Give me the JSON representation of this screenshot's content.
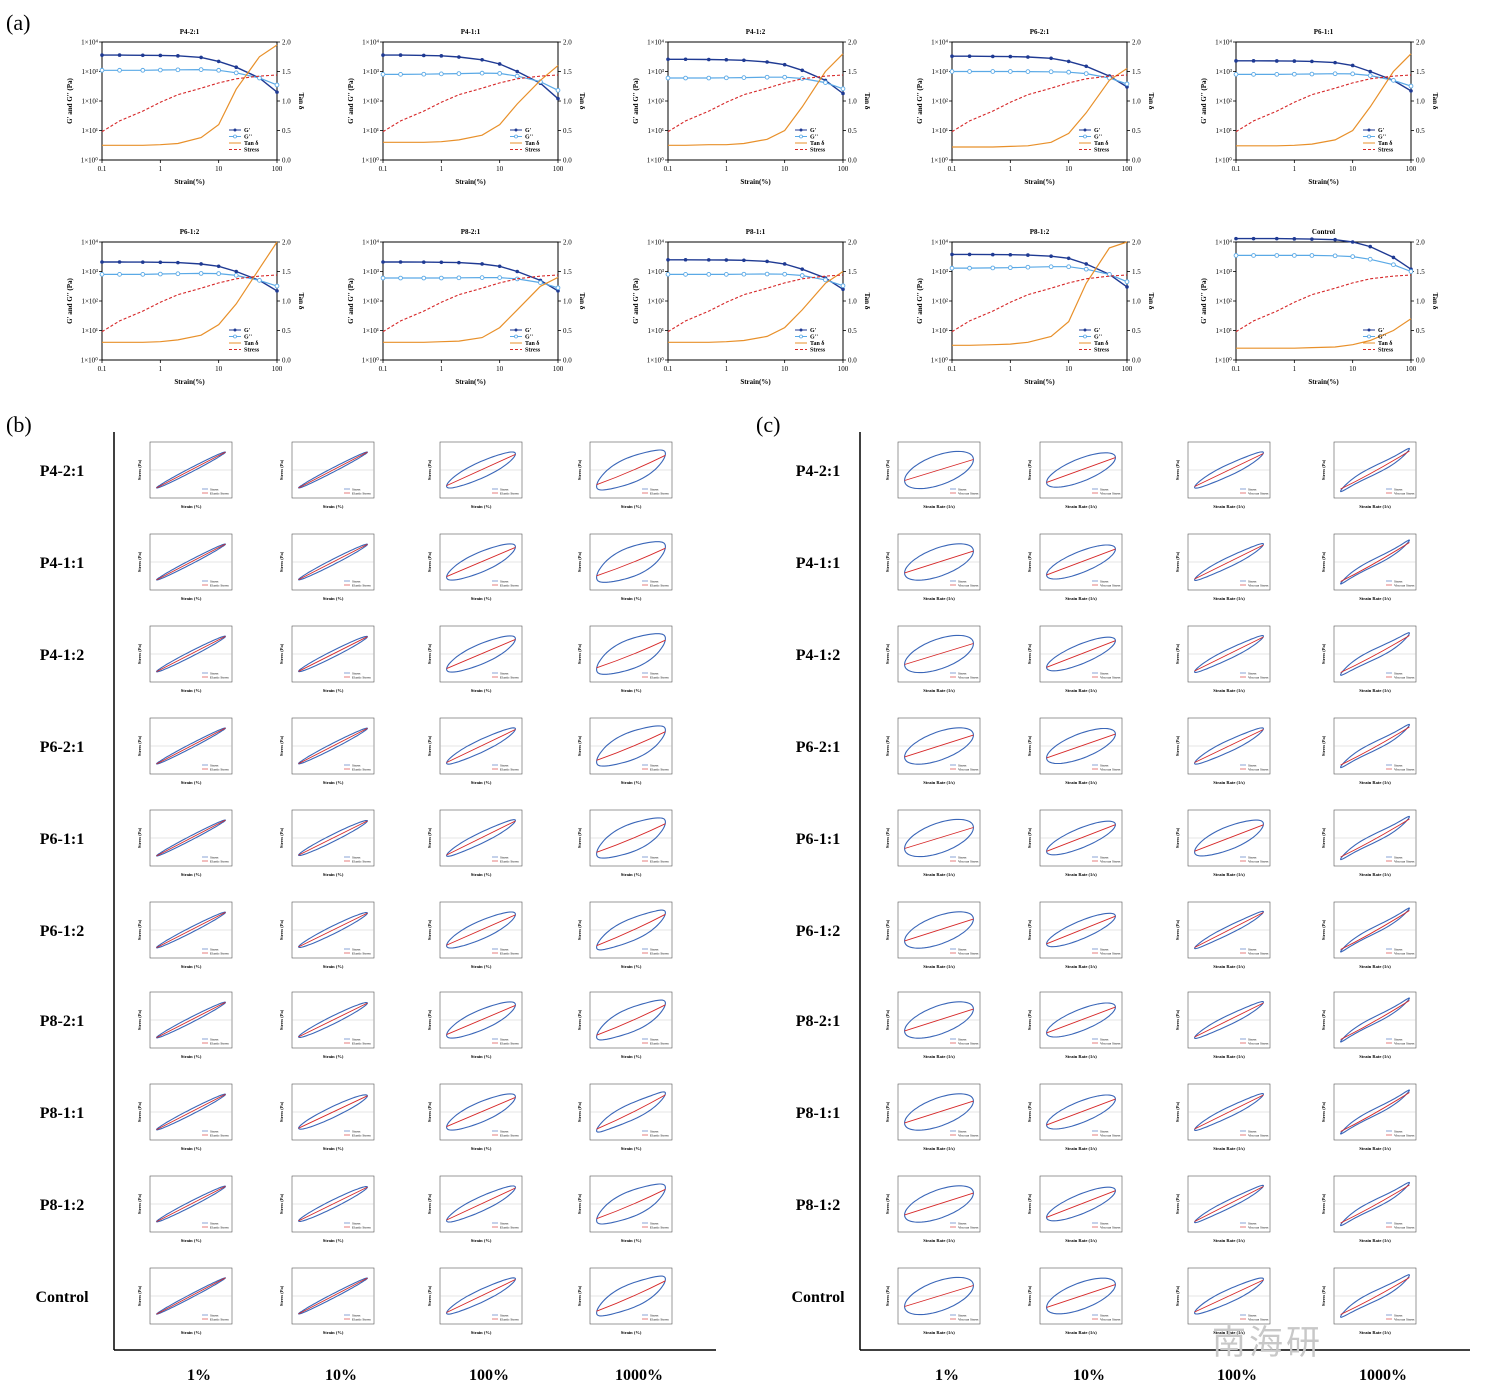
{
  "panel_labels": {
    "a": "(a)",
    "b": "(b)",
    "c": "(c)"
  },
  "watermark": "南海研",
  "colors": {
    "g_prime": "#1f3a93",
    "g_double_prime": "#5aa9e6",
    "tan_delta": "#e8902a",
    "stress": "#d62728",
    "lissajous_total": "#3a66b8",
    "lissajous_elastic": "#d62728"
  },
  "amplitude_sweeps": {
    "left_axis_label": "G' and G'' (Pa)",
    "right_axis_label": "Tan δ",
    "x_axis_label": "Strain(%)",
    "x_ticks": [
      "0.1",
      "1",
      "10",
      "100"
    ],
    "left_ticks": [
      "1×10⁰",
      "1×10¹",
      "1×10²",
      "1×10³",
      "1×10⁴"
    ],
    "right_ticks": [
      "0.0",
      "0.5",
      "1.0",
      "1.5",
      "2.0"
    ],
    "legend": [
      "G'",
      "G''",
      "Tan δ",
      "Stress"
    ],
    "samples": [
      "P4-2:1",
      "P4-1:1",
      "P4-1:2",
      "P6-2:1",
      "P6-1:1",
      "P6-1:2",
      "P8-2:1",
      "P8-1:1",
      "P8-1:2",
      "Control"
    ]
  },
  "lissajous": {
    "row_labels": [
      "P4-2:1",
      "P4-1:1",
      "P4-1:2",
      "P6-2:1",
      "P6-1:1",
      "P6-1:2",
      "P8-2:1",
      "P8-1:1",
      "P8-1:2",
      "Control"
    ],
    "column_labels": [
      "1%",
      "10%",
      "100%",
      "1000%"
    ],
    "b_xlabel": "Strain (%)",
    "b_ylabel": "Stress (Pa)",
    "c_xlabel": "Strain Rate (1/s)",
    "c_ylabel": "Stress (Pa)",
    "b_legend": [
      "Stress",
      "Elastic Stress"
    ],
    "c_legend": [
      "Stress",
      "Viscous Stress"
    ]
  },
  "chart_data": [
    {
      "type": "line",
      "title": "",
      "panel": "(a) amplitude sweeps",
      "xlabel": "Strain(%)",
      "ylabel": "G' and G'' (Pa)",
      "y2label": "Tan δ",
      "xscale": "log",
      "yscale": "log",
      "xlim": [
        0.1,
        100
      ],
      "ylim": [
        1,
        10000
      ],
      "y2lim": [
        0,
        2
      ],
      "x": [
        0.1,
        0.2,
        0.5,
        1,
        2,
        5,
        10,
        20,
        50,
        100
      ],
      "samples": [
        {
          "name": "P4-2:1",
          "Gp": [
            3600,
            3600,
            3550,
            3500,
            3400,
            3000,
            2200,
            1400,
            600,
            200
          ],
          "Gpp": [
            1100,
            1100,
            1100,
            1120,
            1140,
            1160,
            1100,
            900,
            600,
            350
          ],
          "tand": [
            0.25,
            0.25,
            0.25,
            0.26,
            0.28,
            0.38,
            0.6,
            1.2,
            1.75,
            1.95
          ]
        },
        {
          "name": "P4-1:1",
          "Gp": [
            3600,
            3600,
            3500,
            3400,
            3100,
            2500,
            1800,
            1000,
            400,
            120
          ],
          "Gpp": [
            800,
            800,
            810,
            830,
            850,
            880,
            860,
            700,
            450,
            230
          ],
          "tand": [
            0.3,
            0.3,
            0.3,
            0.31,
            0.34,
            0.42,
            0.6,
            0.95,
            1.35,
            1.6
          ]
        },
        {
          "name": "P4-1:2",
          "Gp": [
            2600,
            2600,
            2550,
            2500,
            2400,
            2100,
            1700,
            1100,
            500,
            180
          ],
          "Gpp": [
            600,
            600,
            600,
            610,
            620,
            640,
            640,
            580,
            420,
            260
          ],
          "tand": [
            0.25,
            0.25,
            0.26,
            0.26,
            0.28,
            0.35,
            0.5,
            0.9,
            1.5,
            1.8
          ]
        },
        {
          "name": "P6-2:1",
          "Gp": [
            3300,
            3300,
            3250,
            3200,
            3100,
            2800,
            2200,
            1500,
            700,
            300
          ],
          "Gpp": [
            1000,
            1000,
            1000,
            1000,
            990,
            980,
            950,
            850,
            600,
            380
          ],
          "tand": [
            0.22,
            0.22,
            0.22,
            0.23,
            0.24,
            0.3,
            0.45,
            0.8,
            1.35,
            1.55
          ]
        },
        {
          "name": "P6-1:1",
          "Gp": [
            2300,
            2300,
            2280,
            2250,
            2200,
            2000,
            1600,
            1000,
            500,
            220
          ],
          "Gpp": [
            800,
            800,
            800,
            810,
            820,
            840,
            830,
            730,
            500,
            320
          ],
          "tand": [
            0.24,
            0.24,
            0.24,
            0.25,
            0.27,
            0.34,
            0.5,
            0.9,
            1.5,
            1.8
          ]
        },
        {
          "name": "P6-1:2",
          "Gp": [
            2100,
            2100,
            2080,
            2050,
            2000,
            1800,
            1500,
            1000,
            500,
            220
          ],
          "Gpp": [
            800,
            800,
            800,
            820,
            840,
            860,
            850,
            740,
            500,
            320
          ],
          "tand": [
            0.3,
            0.3,
            0.3,
            0.31,
            0.34,
            0.42,
            0.6,
            0.95,
            1.55,
            2.0
          ]
        },
        {
          "name": "P8-2:1",
          "Gp": [
            2100,
            2100,
            2080,
            2050,
            2000,
            1800,
            1500,
            1000,
            500,
            220
          ],
          "Gpp": [
            600,
            600,
            600,
            600,
            610,
            620,
            620,
            560,
            420,
            280
          ],
          "tand": [
            0.3,
            0.3,
            0.3,
            0.31,
            0.32,
            0.38,
            0.55,
            0.85,
            1.25,
            1.4
          ]
        },
        {
          "name": "P8-1:1",
          "Gp": [
            2500,
            2500,
            2480,
            2450,
            2400,
            2200,
            1800,
            1200,
            600,
            250
          ],
          "Gpp": [
            800,
            800,
            800,
            800,
            810,
            820,
            810,
            730,
            520,
            330
          ],
          "tand": [
            0.3,
            0.3,
            0.3,
            0.31,
            0.33,
            0.4,
            0.55,
            0.85,
            1.3,
            1.5
          ]
        },
        {
          "name": "P8-1:2",
          "Gp": [
            3800,
            3800,
            3750,
            3700,
            3600,
            3300,
            2800,
            1800,
            800,
            300
          ],
          "Gpp": [
            1300,
            1300,
            1320,
            1350,
            1400,
            1450,
            1450,
            1200,
            800,
            450
          ],
          "tand": [
            0.25,
            0.25,
            0.26,
            0.27,
            0.3,
            0.4,
            0.65,
            1.3,
            1.9,
            2.0
          ]
        },
        {
          "name": "Control",
          "Gp": [
            13000,
            13000,
            13000,
            12800,
            12500,
            12000,
            10000,
            7000,
            3000,
            1200
          ],
          "Gpp": [
            3500,
            3500,
            3500,
            3500,
            3500,
            3400,
            3200,
            2600,
            1700,
            1000
          ],
          "tand": [
            0.2,
            0.2,
            0.2,
            0.2,
            0.21,
            0.22,
            0.26,
            0.33,
            0.5,
            0.7
          ]
        }
      ]
    },
    {
      "type": "line",
      "title": "",
      "panel": "(b) elastic Lissajous-Bowditch curves (stress vs strain)",
      "xlabel": "Strain (%)",
      "ylabel": "Stress (Pa)",
      "rows": [
        "P4-2:1",
        "P4-1:1",
        "P4-1:2",
        "P6-2:1",
        "P6-1:1",
        "P6-1:2",
        "P8-2:1",
        "P8-1:1",
        "P8-1:2",
        "Control"
      ],
      "columns": [
        "1%",
        "10%",
        "100%",
        "1000%"
      ],
      "loop_openness": [
        [
          0.12,
          0.12,
          0.45,
          0.7
        ],
        [
          0.12,
          0.15,
          0.55,
          0.8
        ],
        [
          0.15,
          0.18,
          0.55,
          0.8
        ],
        [
          0.12,
          0.15,
          0.35,
          0.75
        ],
        [
          0.12,
          0.2,
          0.3,
          0.75
        ],
        [
          0.15,
          0.22,
          0.5,
          0.6
        ],
        [
          0.15,
          0.22,
          0.55,
          0.65
        ],
        [
          0.15,
          0.3,
          0.55,
          0.45
        ],
        [
          0.15,
          0.22,
          0.4,
          0.7
        ],
        [
          0.1,
          0.12,
          0.35,
          0.65
        ]
      ]
    },
    {
      "type": "line",
      "title": "",
      "panel": "(c) viscous Lissajous-Bowditch curves (stress vs strain rate)",
      "xlabel": "Strain Rate (1/s)",
      "ylabel": "Stress (Pa)",
      "rows": [
        "P4-2:1",
        "P4-1:1",
        "P4-1:2",
        "P6-2:1",
        "P6-1:1",
        "P6-1:2",
        "P8-2:1",
        "P8-1:1",
        "P8-1:2",
        "Control"
      ],
      "columns": [
        "1%",
        "10%",
        "100%",
        "1000%"
      ],
      "loop_openness": [
        [
          0.9,
          0.7,
          0.35,
          0.25
        ],
        [
          0.85,
          0.65,
          0.3,
          0.2
        ],
        [
          0.9,
          0.6,
          0.3,
          0.3
        ],
        [
          0.85,
          0.75,
          0.35,
          0.25
        ],
        [
          0.9,
          0.6,
          0.7,
          0.25
        ],
        [
          0.85,
          0.55,
          0.25,
          0.2
        ],
        [
          0.85,
          0.65,
          0.3,
          0.2
        ],
        [
          0.85,
          0.65,
          0.3,
          0.2
        ],
        [
          0.85,
          0.6,
          0.25,
          0.25
        ],
        [
          0.9,
          0.8,
          0.4,
          0.3
        ]
      ]
    }
  ]
}
